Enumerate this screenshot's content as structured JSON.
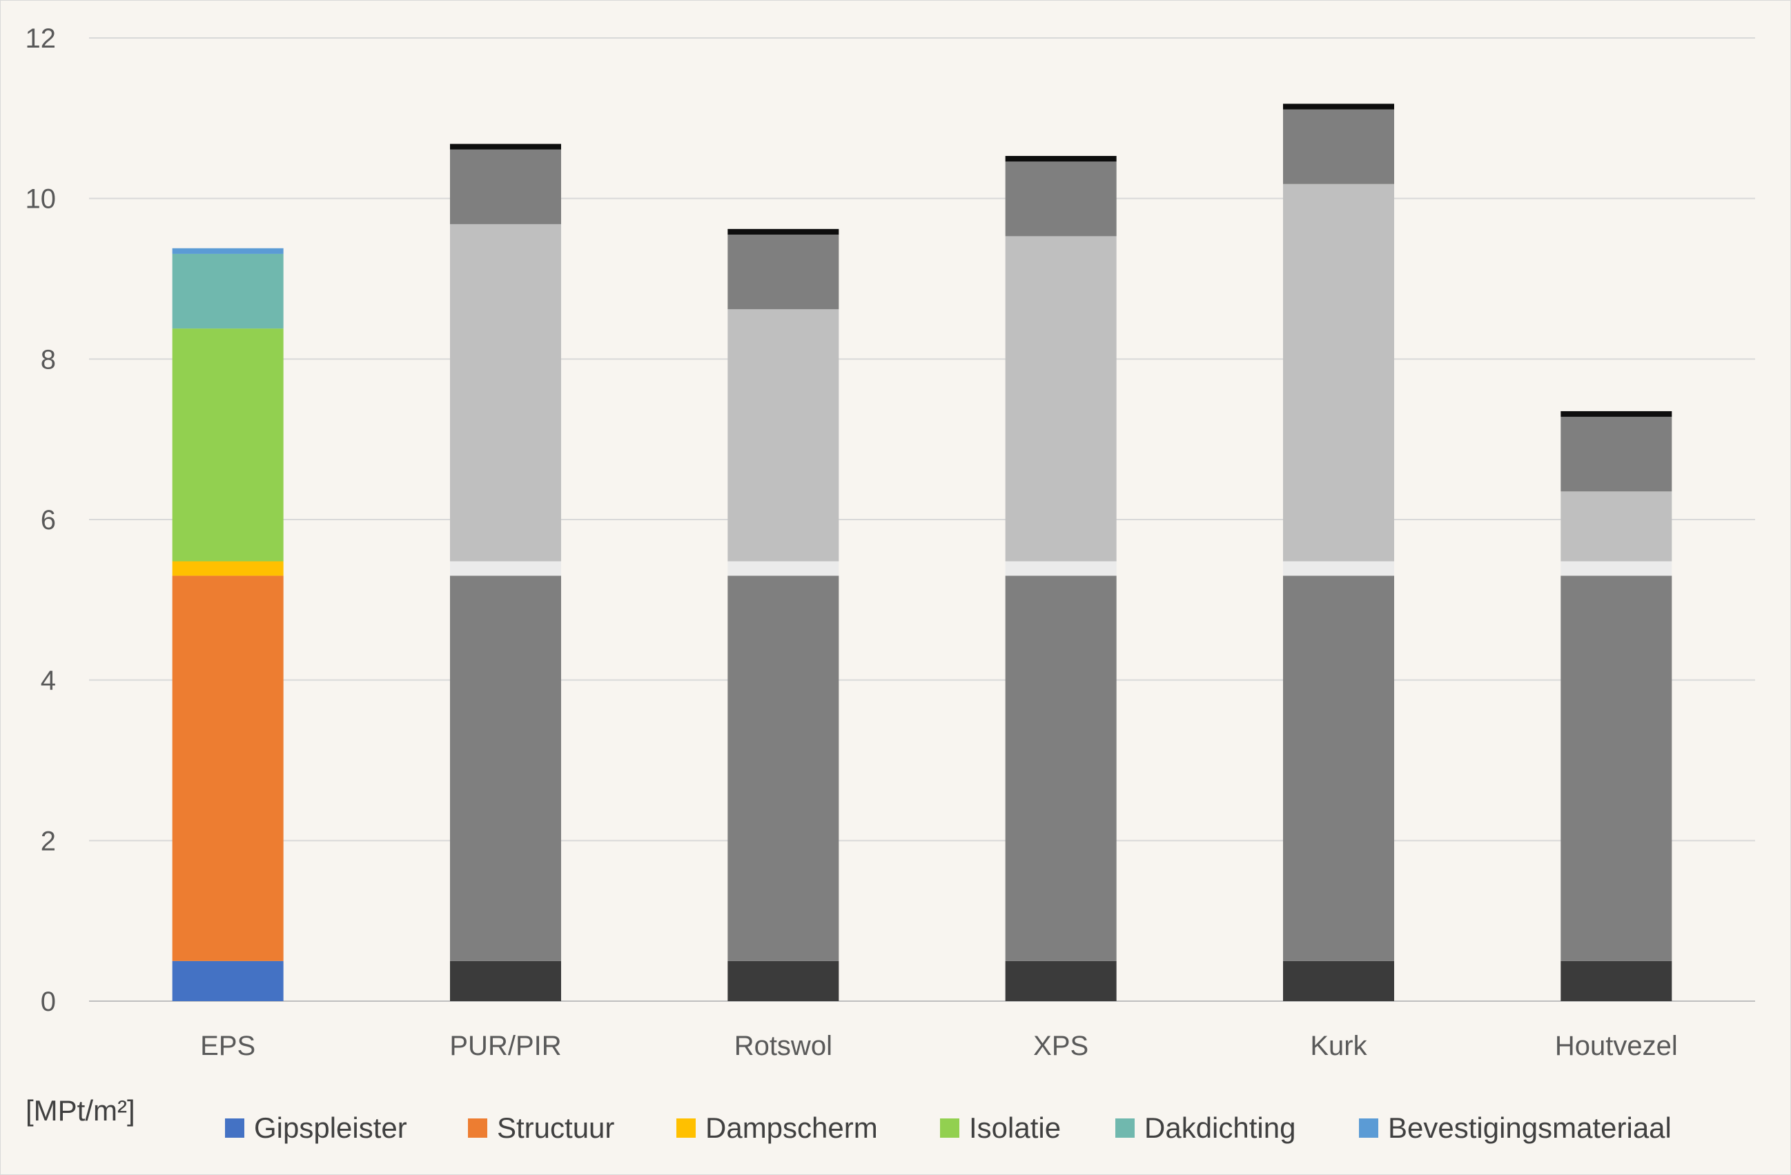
{
  "chart_data": {
    "type": "bar",
    "stacked": true,
    "unit_label": "[MPt/m²]",
    "categories": [
      "EPS",
      "PUR/PIR",
      "Rotswol",
      "XPS",
      "Kurk",
      "Houtvezel"
    ],
    "ylim": [
      0,
      12
    ],
    "yticks": [
      0,
      2,
      4,
      6,
      8,
      10,
      12
    ],
    "grid": true,
    "legend_position": "bottom",
    "highlighted_category": "EPS",
    "series": [
      {
        "name": "Gipspleister",
        "color": "#4472c4",
        "muted_color": "#3b3b3b",
        "values": [
          0.5,
          0.5,
          0.5,
          0.5,
          0.5,
          0.5
        ]
      },
      {
        "name": "Structuur",
        "color": "#ed7d31",
        "muted_color": "#7f7f7f",
        "values": [
          4.8,
          4.8,
          4.8,
          4.8,
          4.8,
          4.8
        ]
      },
      {
        "name": "Dampscherm",
        "color": "#ffc000",
        "muted_color": "#ebebeb",
        "values": [
          0.18,
          0.18,
          0.18,
          0.18,
          0.18,
          0.18
        ]
      },
      {
        "name": "Isolatie",
        "color": "#92d050",
        "muted_color": "#bfbfbf",
        "values": [
          2.9,
          4.2,
          3.14,
          4.05,
          4.7,
          0.87
        ]
      },
      {
        "name": "Dakdichting",
        "color": "#70b8ae",
        "muted_color": "#7f7f7f",
        "values": [
          0.93,
          0.93,
          0.93,
          0.93,
          0.93,
          0.93
        ]
      },
      {
        "name": "Bevestigingsmateriaal",
        "color": "#5b9bd5",
        "muted_color": "#0d0d0d",
        "values": [
          0.07,
          0.07,
          0.07,
          0.07,
          0.07,
          0.07
        ]
      }
    ]
  }
}
